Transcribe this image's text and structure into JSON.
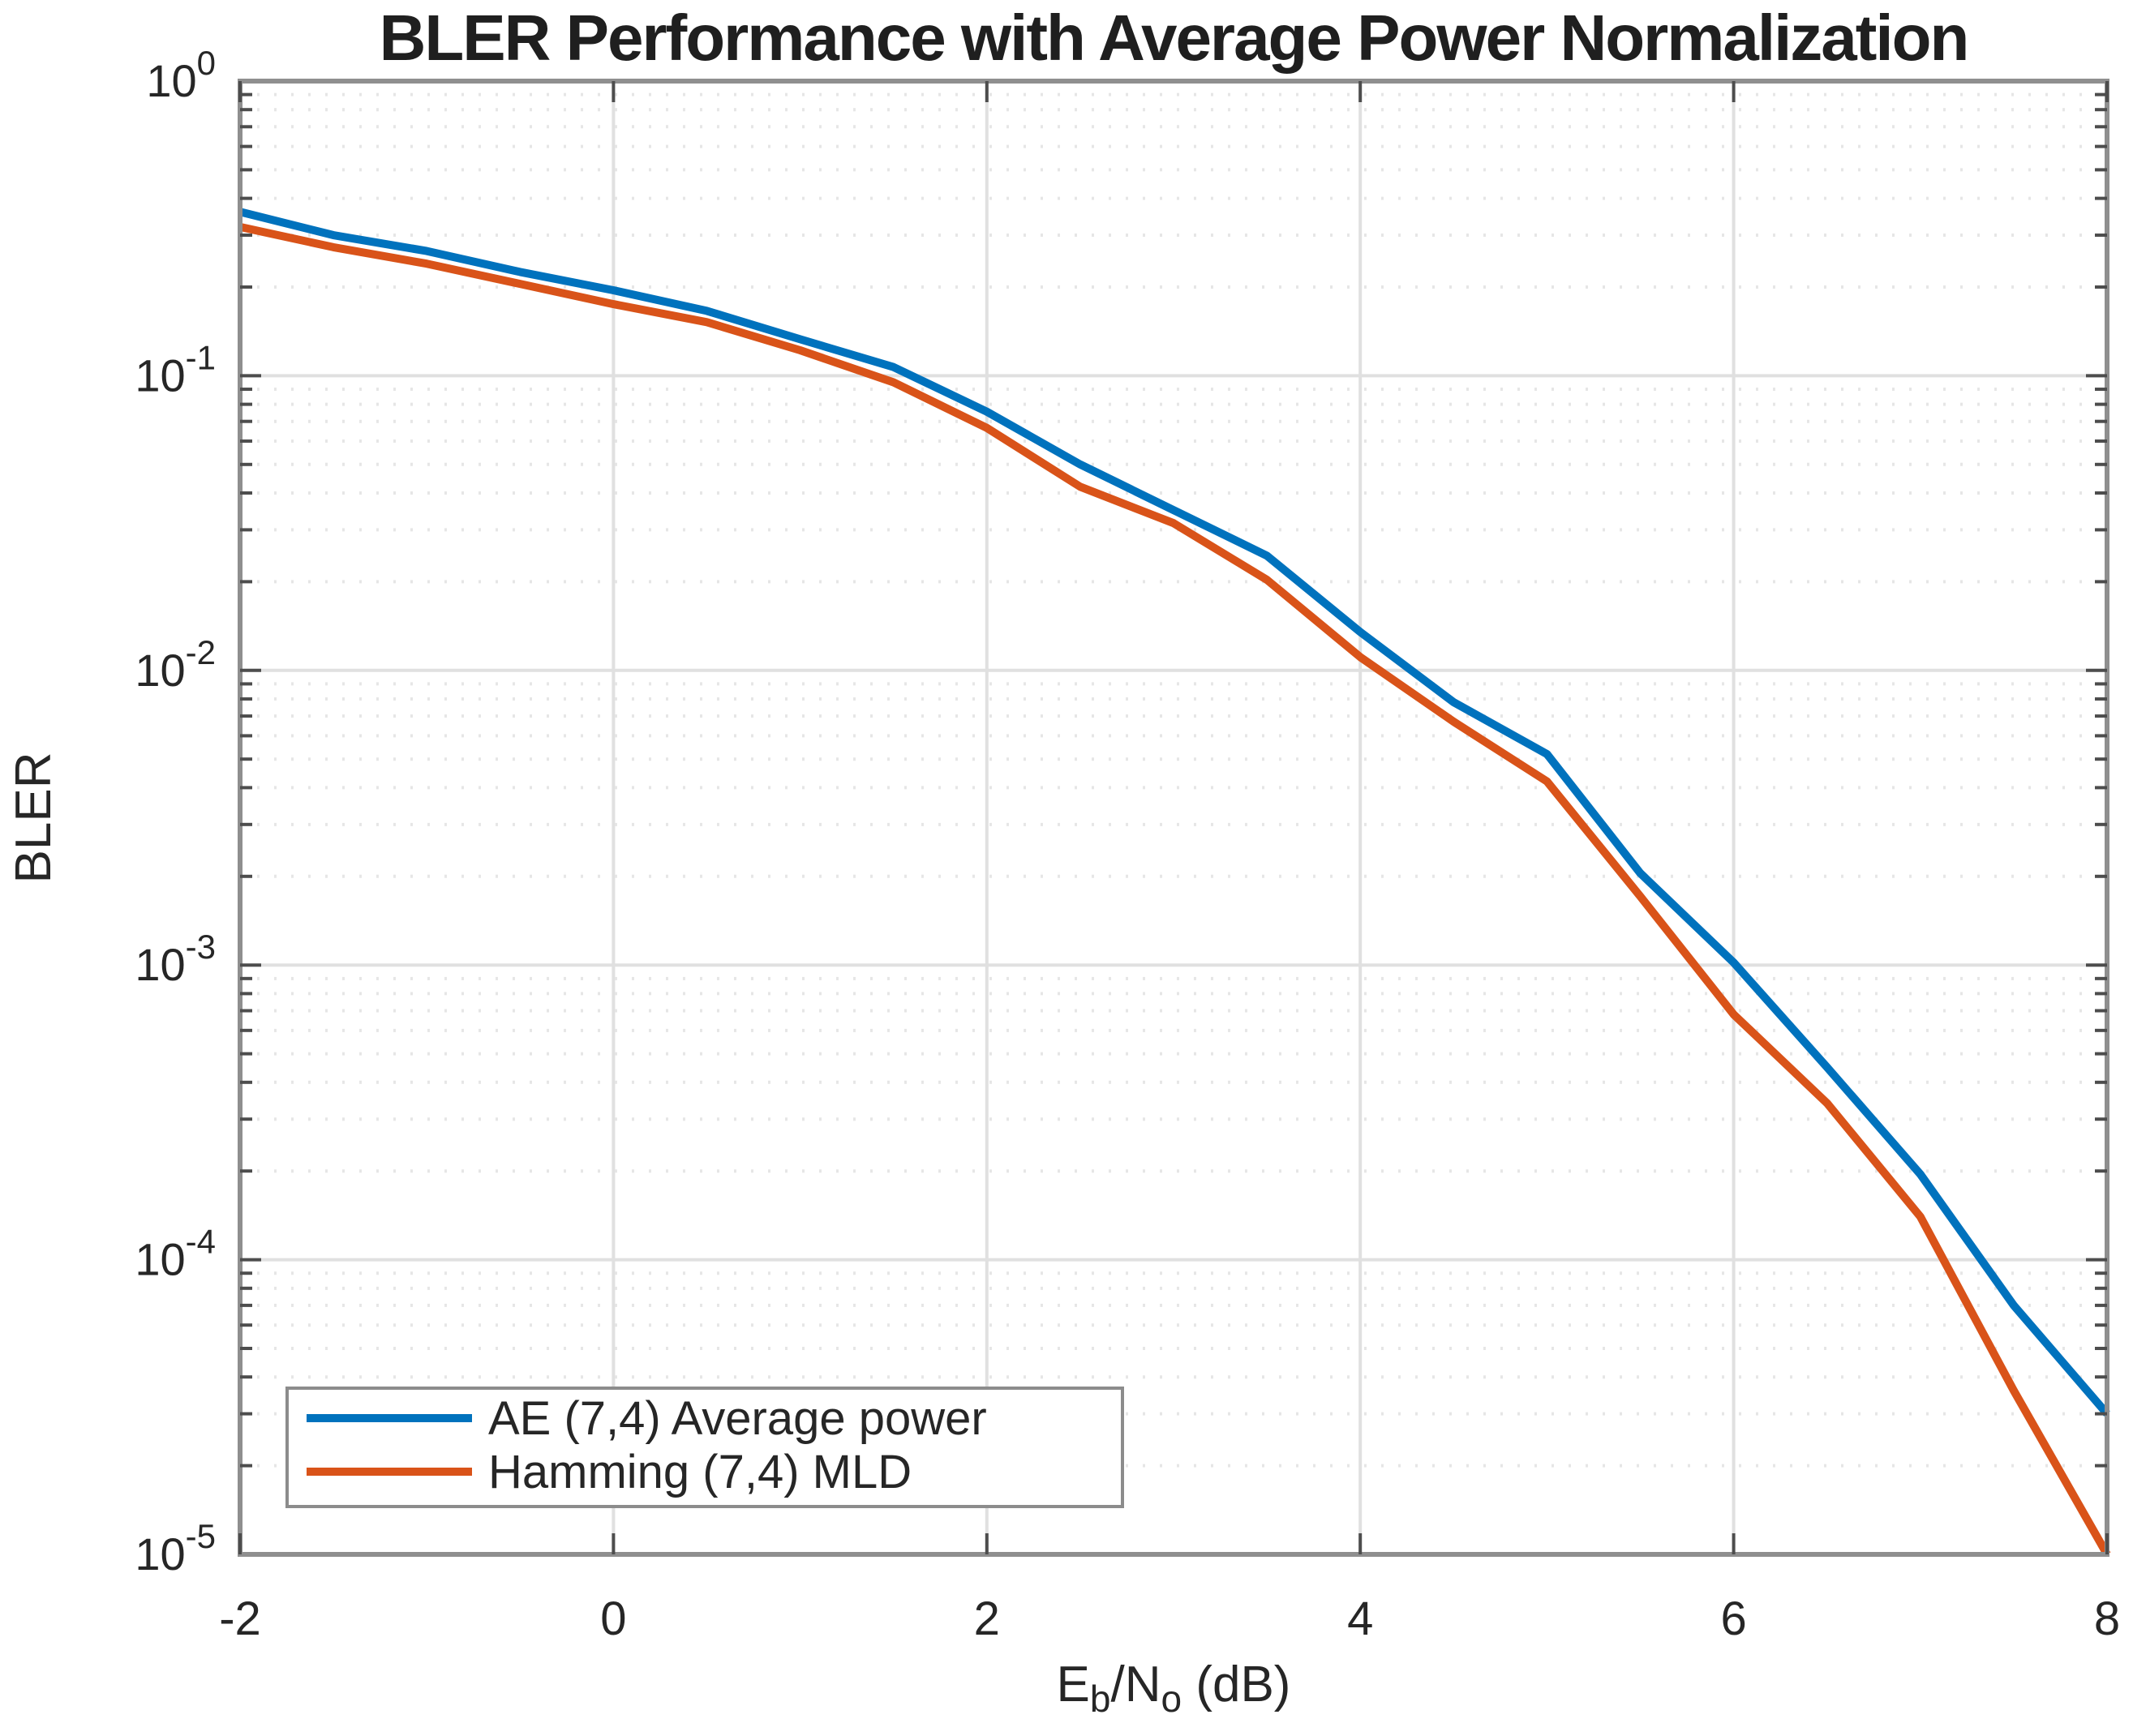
{
  "figure": {
    "background": "#ffffff"
  },
  "style": {
    "axis_color": "#8f8f8f",
    "tick_color": "#4d4d4d",
    "grid_major_color": "#e0e0e0",
    "grid_minor_color": "#e6e6e6",
    "text_color": "#262626",
    "title_color": "#1f1f1f",
    "legend_border_color": "#8c8c8c",
    "legend_background": "#ffffff"
  },
  "chart_data": {
    "type": "line",
    "title": "BLER Performance with Average Power Normalization",
    "xlabel_plain": "Eb/No (dB)",
    "xlabel_parts": [
      {
        "t": "E"
      },
      {
        "t": "b",
        "sub": true
      },
      {
        "t": "/N"
      },
      {
        "t": "o",
        "sub": true
      },
      {
        "t": " (dB)"
      }
    ],
    "ylabel": "BLER",
    "x_axis": {
      "label": "Eb/No (dB)",
      "min": -2,
      "max": 8,
      "tick_values": [
        -2,
        0,
        2,
        4,
        6,
        8
      ],
      "tick_labels": [
        "-2",
        "0",
        "2",
        "4",
        "6",
        "8"
      ]
    },
    "y_axis": {
      "label": "BLER",
      "scale": "log",
      "min": 1e-05,
      "max": 1,
      "tick_exponents": [
        0,
        -1,
        -2,
        -3,
        -4,
        -5
      ],
      "tick_labels": [
        "10^0",
        "10^-1",
        "10^-2",
        "10^-3",
        "10^-4",
        "10^-5"
      ]
    },
    "grid": {
      "major": true,
      "y_minor_dotted": true,
      "x_minor": false
    },
    "legend": {
      "position": "bottom-left"
    },
    "x": [
      -2,
      -1.5,
      -1,
      -0.5,
      0,
      0.5,
      1,
      1.5,
      2,
      2.5,
      3,
      3.5,
      4,
      4.5,
      5,
      5.5,
      6,
      6.5,
      7,
      7.5,
      8
    ],
    "series": [
      {
        "name": "AE (7,4) Average power",
        "color": "#0072BD",
        "values": [
          0.36,
          0.3,
          0.265,
          0.225,
          0.195,
          0.166,
          0.133,
          0.107,
          0.0755,
          0.05,
          0.035,
          0.0245,
          0.0135,
          0.0078,
          0.0052,
          0.00205,
          0.00102,
          0.00045,
          0.000195,
          7e-05,
          3e-05
        ]
      },
      {
        "name": "Hamming (7,4) MLD",
        "color": "#D95319",
        "values": [
          0.32,
          0.273,
          0.24,
          0.205,
          0.175,
          0.152,
          0.122,
          0.095,
          0.0665,
          0.042,
          0.0316,
          0.0203,
          0.0111,
          0.0067,
          0.0042,
          0.00171,
          0.00068,
          0.00034,
          0.00014,
          3.6e-05,
          1e-05
        ]
      }
    ]
  }
}
